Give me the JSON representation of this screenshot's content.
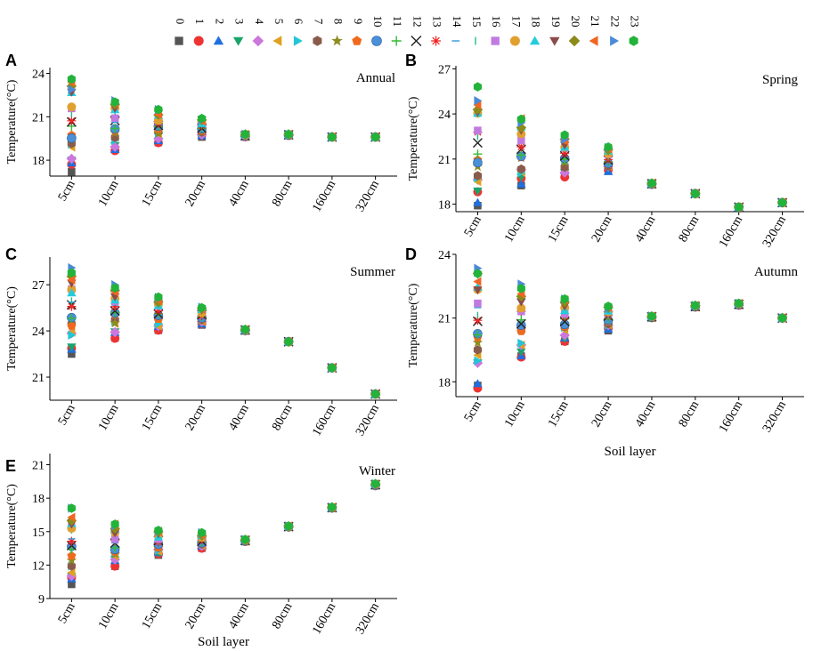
{
  "figure": {
    "legend_labels": [
      "0",
      "1",
      "2",
      "3",
      "4",
      "5",
      "6",
      "7",
      "8",
      "9",
      "10",
      "11",
      "12",
      "13",
      "14",
      "15",
      "16",
      "17",
      "18",
      "19",
      "20",
      "21",
      "22",
      "23"
    ],
    "legend_colors": [
      "#555555",
      "#ee3333",
      "#1f6fe0",
      "#1aa36a",
      "#cc77dd",
      "#e0a020",
      "#22c6d6",
      "#8a5b4b",
      "#8c8c20",
      "#f06a1e",
      "#4a90d9",
      "#33bb33",
      "#222222",
      "#ee2222",
      "#3399dd",
      "#22bb88",
      "#c17be0",
      "#e0a030",
      "#22ccdd",
      "#8b4b4b",
      "#8b8b1a",
      "#f26522",
      "#4b8bd6",
      "#22b33a"
    ],
    "legend_shapes": [
      "square",
      "circle",
      "triangle-up",
      "triangle-down",
      "diamond",
      "triangle-left",
      "triangle-right",
      "hexagon",
      "star",
      "pentagon",
      "sphere",
      "plus",
      "x",
      "asterisk",
      "dash",
      "vbar",
      "square",
      "circle",
      "triangle-up",
      "triangle-down",
      "diamond",
      "triangle-left",
      "triangle-right",
      "hexagon"
    ]
  },
  "chart_data": [
    {
      "letter": "A",
      "title": "Annual",
      "type": "scatter",
      "ylabel": "Temperature(°C)",
      "xlabel": "",
      "categories": [
        "5cm",
        "10cm",
        "15cm",
        "20cm",
        "40cm",
        "80cm",
        "160cm",
        "320cm"
      ],
      "ylim": [
        16.9,
        24.4
      ],
      "yticks": [
        "18",
        "21",
        "24"
      ],
      "ranges": [
        [
          17.2,
          23.6
        ],
        [
          18.5,
          22.3
        ],
        [
          19.2,
          21.5
        ],
        [
          19.6,
          20.9
        ],
        [
          19.6,
          19.8
        ],
        [
          19.7,
          19.8
        ],
        [
          19.6,
          19.6
        ],
        [
          19.6,
          19.6
        ]
      ]
    },
    {
      "letter": "B",
      "title": "Spring",
      "type": "scatter",
      "ylabel": "Temperature(°C)",
      "xlabel": "",
      "categories": [
        "5cm",
        "10cm",
        "15cm",
        "20cm",
        "40cm",
        "80cm",
        "160cm",
        "320cm"
      ],
      "ylim": [
        17.5,
        27.2
      ],
      "yticks": [
        "18",
        "21",
        "24",
        "27"
      ],
      "ranges": [
        [
          17.9,
          25.8
        ],
        [
          19.2,
          23.8
        ],
        [
          19.8,
          22.6
        ],
        [
          20.1,
          21.8
        ],
        [
          19.3,
          19.4
        ],
        [
          18.7,
          18.7
        ],
        [
          17.8,
          17.8
        ],
        [
          18.1,
          18.1
        ]
      ]
    },
    {
      "letter": "C",
      "title": "Summer",
      "type": "scatter",
      "ylabel": "Temperature(°C)",
      "xlabel": "",
      "categories": [
        "5cm",
        "10cm",
        "15cm",
        "20cm",
        "40cm",
        "80cm",
        "160cm",
        "320cm"
      ],
      "ylim": [
        19.5,
        28.8
      ],
      "yticks": [
        "21",
        "24",
        "27"
      ],
      "ranges": [
        [
          22.5,
          28.1
        ],
        [
          23.5,
          27.0
        ],
        [
          24.0,
          26.2
        ],
        [
          24.3,
          25.6
        ],
        [
          24.0,
          24.1
        ],
        [
          23.3,
          23.3
        ],
        [
          21.6,
          21.6
        ],
        [
          19.9,
          19.9
        ]
      ]
    },
    {
      "letter": "D",
      "title": "Autumn",
      "type": "scatter",
      "ylabel": "Temperature(°C)",
      "xlabel": "Soil layer",
      "categories": [
        "5cm",
        "10cm",
        "15cm",
        "20cm",
        "40cm",
        "80cm",
        "160cm",
        "320cm"
      ],
      "ylim": [
        17.3,
        24.0
      ],
      "yticks": [
        "18",
        "21",
        "24"
      ],
      "ranges": [
        [
          17.7,
          23.5
        ],
        [
          19.1,
          22.6
        ],
        [
          19.9,
          21.9
        ],
        [
          20.4,
          21.6
        ],
        [
          21.0,
          21.1
        ],
        [
          21.5,
          21.6
        ],
        [
          21.6,
          21.7
        ],
        [
          21.0,
          21.0
        ]
      ]
    },
    {
      "letter": "E",
      "title": "Winter",
      "type": "scatter",
      "ylabel": "Temperature(°C)",
      "xlabel": "Soil layer",
      "categories": [
        "5cm",
        "10cm",
        "15cm",
        "20cm",
        "40cm",
        "80cm",
        "160cm",
        "320cm"
      ],
      "ylim": [
        9.0,
        22.0
      ],
      "yticks": [
        "9",
        "12",
        "15",
        "18",
        "21"
      ],
      "ranges": [
        [
          10.2,
          17.1
        ],
        [
          11.9,
          15.8
        ],
        [
          12.8,
          15.2
        ],
        [
          13.5,
          14.9
        ],
        [
          14.1,
          14.3
        ],
        [
          15.4,
          15.5
        ],
        [
          17.1,
          17.2
        ],
        [
          19.1,
          19.3
        ]
      ]
    }
  ]
}
